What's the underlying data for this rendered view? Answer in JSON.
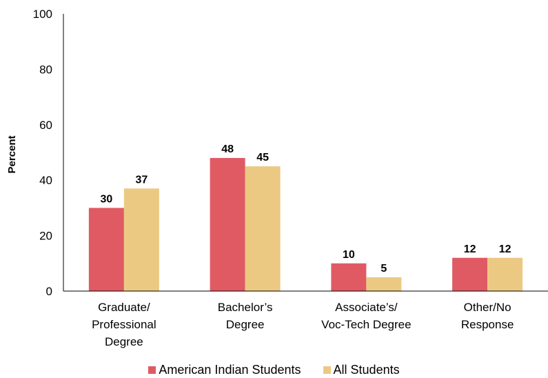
{
  "chart_data": {
    "type": "bar",
    "title": "",
    "xlabel": "",
    "ylabel": "Percent",
    "ylim": [
      0,
      100
    ],
    "yticks": [
      0,
      20,
      40,
      60,
      80,
      100
    ],
    "categories": [
      [
        "Graduate/",
        "Professional",
        "Degree"
      ],
      [
        "Bachelor’s",
        "Degree"
      ],
      [
        "Associate’s/",
        "Voc-Tech Degree"
      ],
      [
        "Other/No",
        "Response"
      ]
    ],
    "series": [
      {
        "name": "American Indian Students",
        "color": "#e05a64",
        "values": [
          30,
          48,
          10,
          12
        ]
      },
      {
        "name": "All Students",
        "color": "#ecc983",
        "values": [
          37,
          45,
          5,
          12
        ]
      }
    ],
    "grid": false,
    "legend": "bottom"
  }
}
